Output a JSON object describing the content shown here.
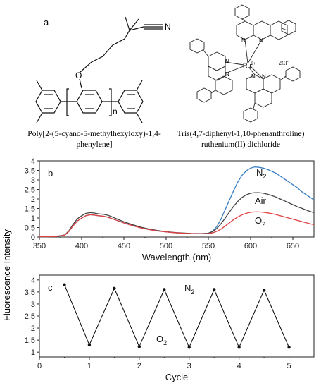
{
  "panel_a": {
    "label": "a",
    "polymer": {
      "name_line1": "Poly[2-(5-cyano-5-methylhexyloxy)-1,4-",
      "name_line2": "phenylene]",
      "atom_N": "N",
      "atom_O": "O",
      "subscript_n": "n"
    },
    "complex": {
      "name_line1": "Tris(4,7-diphenyl-1,10-phenanthroline)",
      "name_line2": "ruthenium(II) dichloride",
      "metal": "Ru",
      "metal_charge": "2+",
      "counterion": "2Cl",
      "counterion_charge": "-",
      "atom_N": "N"
    }
  },
  "y_axis_label": "Fluorescence Intensity",
  "chart_data": [
    {
      "type": "line",
      "panel_label": "b",
      "xlabel": "Wavelength (nm)",
      "ylabel": "",
      "xlim": [
        350,
        675
      ],
      "ylim": [
        0,
        4
      ],
      "x_ticks": [
        350,
        400,
        450,
        500,
        550,
        600,
        650
      ],
      "y_ticks": [
        0,
        0.5,
        1,
        1.5,
        2,
        2.5,
        3,
        3.5,
        4
      ],
      "x_tick_labels": [
        "350",
        "400",
        "450",
        "500",
        "550",
        "600",
        "650"
      ],
      "y_tick_labels": [
        "0",
        "0.5",
        "1",
        "1.5",
        "2",
        "2.5",
        "3",
        "3.5",
        "4"
      ],
      "series": [
        {
          "name": "N",
          "name_sub": "2",
          "color": "#3a7fc4",
          "x": [
            350,
            360,
            370,
            380,
            385,
            390,
            395,
            400,
            405,
            410,
            415,
            420,
            425,
            430,
            435,
            440,
            450,
            460,
            470,
            480,
            490,
            500,
            510,
            520,
            530,
            540,
            550,
            555,
            560,
            565,
            570,
            575,
            580,
            585,
            590,
            595,
            600,
            605,
            610,
            615,
            620,
            625,
            630,
            635,
            640,
            645,
            650,
            655,
            660,
            665,
            670,
            675
          ],
          "y": [
            0.02,
            0.02,
            0.03,
            0.1,
            0.3,
            0.6,
            0.85,
            1.0,
            1.12,
            1.17,
            1.15,
            1.12,
            1.1,
            1.05,
            0.98,
            0.9,
            0.74,
            0.6,
            0.48,
            0.39,
            0.32,
            0.27,
            0.23,
            0.2,
            0.18,
            0.17,
            0.2,
            0.3,
            0.55,
            0.95,
            1.45,
            1.95,
            2.45,
            2.9,
            3.25,
            3.48,
            3.62,
            3.68,
            3.66,
            3.62,
            3.55,
            3.45,
            3.35,
            3.2,
            3.05,
            2.9,
            2.75,
            2.6,
            2.4,
            2.25,
            2.1,
            1.95
          ]
        },
        {
          "name": "Air",
          "name_sub": "",
          "color": "#444444",
          "x": [
            350,
            360,
            370,
            380,
            385,
            390,
            395,
            400,
            405,
            410,
            415,
            420,
            425,
            430,
            435,
            440,
            450,
            460,
            470,
            480,
            490,
            500,
            510,
            520,
            530,
            540,
            550,
            555,
            560,
            565,
            570,
            575,
            580,
            585,
            590,
            595,
            600,
            605,
            610,
            615,
            620,
            625,
            630,
            635,
            640,
            645,
            650,
            655,
            660,
            665,
            670,
            675
          ],
          "y": [
            0.02,
            0.02,
            0.03,
            0.11,
            0.33,
            0.68,
            0.96,
            1.12,
            1.24,
            1.28,
            1.26,
            1.22,
            1.2,
            1.16,
            1.08,
            0.98,
            0.8,
            0.65,
            0.52,
            0.42,
            0.34,
            0.28,
            0.24,
            0.21,
            0.19,
            0.18,
            0.2,
            0.28,
            0.45,
            0.7,
            1.0,
            1.32,
            1.62,
            1.88,
            2.08,
            2.22,
            2.3,
            2.33,
            2.33,
            2.3,
            2.25,
            2.18,
            2.1,
            2.0,
            1.9,
            1.8,
            1.7,
            1.6,
            1.52,
            1.43,
            1.35,
            1.28
          ]
        },
        {
          "name": "O",
          "name_sub": "2",
          "color": "#e04040",
          "x": [
            350,
            360,
            370,
            380,
            385,
            390,
            395,
            400,
            405,
            410,
            415,
            420,
            425,
            430,
            435,
            440,
            450,
            460,
            470,
            480,
            490,
            500,
            510,
            520,
            530,
            540,
            550,
            555,
            560,
            565,
            570,
            575,
            580,
            585,
            590,
            595,
            600,
            605,
            610,
            615,
            620,
            625,
            630,
            635,
            640,
            645,
            650,
            655,
            660,
            665,
            670,
            675
          ],
          "y": [
            0.02,
            0.02,
            0.03,
            0.1,
            0.3,
            0.6,
            0.85,
            1.0,
            1.12,
            1.17,
            1.15,
            1.12,
            1.1,
            1.05,
            0.98,
            0.9,
            0.74,
            0.6,
            0.48,
            0.39,
            0.32,
            0.27,
            0.23,
            0.2,
            0.18,
            0.17,
            0.18,
            0.22,
            0.3,
            0.42,
            0.58,
            0.75,
            0.92,
            1.06,
            1.17,
            1.25,
            1.3,
            1.32,
            1.32,
            1.3,
            1.27,
            1.23,
            1.18,
            1.12,
            1.06,
            1.0,
            0.94,
            0.88,
            0.82,
            0.76,
            0.7,
            0.65
          ]
        }
      ]
    },
    {
      "type": "line",
      "panel_label": "c",
      "xlabel": "Cycle",
      "ylabel": "",
      "xlim": [
        0,
        5.5
      ],
      "ylim": [
        0.8,
        4.2
      ],
      "x_ticks": [
        0,
        1,
        2,
        3,
        4,
        5
      ],
      "y_ticks": [
        1,
        1.5,
        2,
        2.5,
        3,
        3.5,
        4
      ],
      "x_tick_labels": [
        "0",
        "1",
        "2",
        "3",
        "4",
        "5"
      ],
      "y_tick_labels": [
        "1",
        "1.5",
        "2",
        "2.5",
        "3",
        "3.5",
        "4"
      ],
      "annotations": [
        {
          "text": "N",
          "sub": "2"
        },
        {
          "text": "O",
          "sub": "2"
        }
      ],
      "series": [
        {
          "name": "",
          "color": "#111111",
          "x": [
            0.5,
            1,
            1.5,
            2,
            2.5,
            3,
            3.5,
            4,
            4.5,
            5
          ],
          "y": [
            3.8,
            1.3,
            3.65,
            1.23,
            3.6,
            1.2,
            3.6,
            1.2,
            3.58,
            1.2
          ]
        }
      ]
    }
  ]
}
